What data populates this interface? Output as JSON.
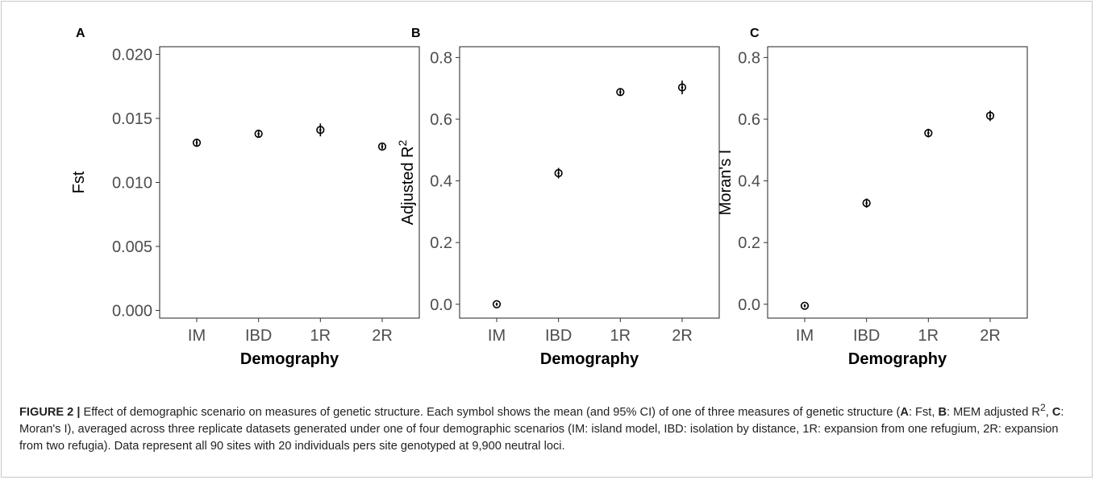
{
  "chart_data": [
    {
      "type": "scatter",
      "panel_label": "A",
      "categories": [
        "IM",
        "IBD",
        "1R",
        "2R"
      ],
      "values": [
        0.0131,
        0.0138,
        0.0141,
        0.0128
      ],
      "ci_low": [
        0.0128,
        0.0135,
        0.0136,
        0.0126
      ],
      "ci_high": [
        0.0134,
        0.0141,
        0.0146,
        0.013
      ],
      "xlabel": "Demography",
      "ylabel": "Fst",
      "ylim": [
        -0.0006,
        0.0206
      ],
      "yticks": [
        "0.000",
        "0.005",
        "0.010",
        "0.015",
        "0.020"
      ],
      "ytick_values": [
        0,
        0.005,
        0.01,
        0.015,
        0.02
      ],
      "grid": false
    },
    {
      "type": "scatter",
      "panel_label": "B",
      "categories": [
        "IM",
        "IBD",
        "1R",
        "2R"
      ],
      "values": [
        0.0,
        0.425,
        0.688,
        0.703
      ],
      "ci_low": [
        -0.005,
        0.408,
        0.677,
        0.681
      ],
      "ci_high": [
        0.005,
        0.442,
        0.699,
        0.725
      ],
      "xlabel": "Demography",
      "ylabel": "Adjusted R",
      "ylabel_sup": "2",
      "ylim": [
        -0.045,
        0.835
      ],
      "yticks": [
        "0.0",
        "0.2",
        "0.4",
        "0.6",
        "0.8"
      ],
      "ytick_values": [
        0,
        0.2,
        0.4,
        0.6,
        0.8
      ],
      "grid": false
    },
    {
      "type": "scatter",
      "panel_label": "C",
      "categories": [
        "IM",
        "IBD",
        "1R",
        "2R"
      ],
      "values": [
        -0.005,
        0.328,
        0.555,
        0.611
      ],
      "ci_low": [
        -0.01,
        0.313,
        0.541,
        0.594
      ],
      "ci_high": [
        0.0,
        0.343,
        0.569,
        0.628
      ],
      "xlabel": "Demography",
      "ylabel": "Moran's I",
      "ylim": [
        -0.045,
        0.835
      ],
      "yticks": [
        "0.0",
        "0.2",
        "0.4",
        "0.6",
        "0.8"
      ],
      "ytick_values": [
        0,
        0.2,
        0.4,
        0.6,
        0.8
      ],
      "grid": false
    }
  ],
  "caption": {
    "figure_label": "FIGURE 2 |",
    "text1": " Effect of demographic scenario on measures of genetic structure. Each symbol shows the mean (and 95% CI) of one of three measures of genetic structure (",
    "a_label": "A",
    "text2": ": Fst, ",
    "b_label": "B",
    "text3": ": MEM adjusted R",
    "sup": "2",
    "text4": ", ",
    "c_label": "C",
    "text5": ": Moran's I), averaged across three replicate datasets generated under one of four demographic scenarios (IM: island model, IBD: isolation by distance, 1R: expansion from one refugium, 2R: expansion from two refugia). Data represent all 90 sites with 20 individuals pers site genotyped at 9,900 neutral loci."
  }
}
